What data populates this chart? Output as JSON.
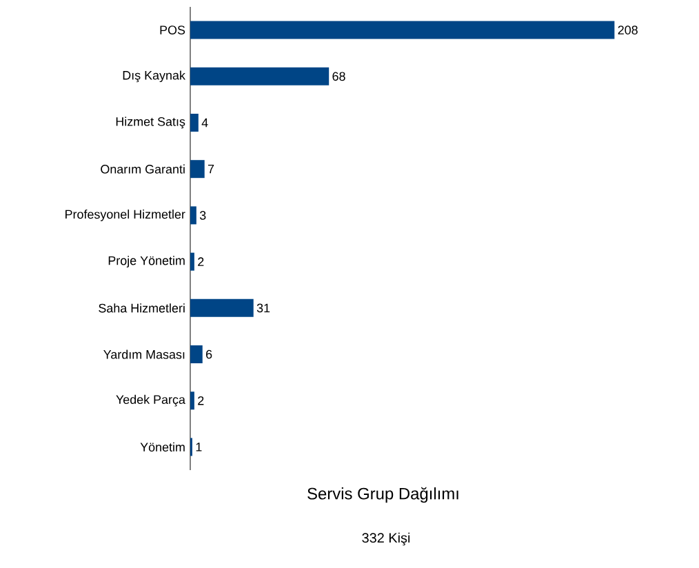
{
  "chart_data": {
    "type": "bar",
    "orientation": "horizontal",
    "title": "Servis Grup Dağılımı",
    "subtitle": "332 Kişi",
    "categories": [
      "POS",
      "Dış Kaynak",
      "Hizmet Satış",
      "Onarım Garanti",
      "Profesyonel Hizmetler",
      "Proje Yönetim",
      "Saha Hizmetleri",
      "Yardım Masası",
      "Yedek Parça",
      "Yönetim"
    ],
    "values": [
      208,
      68,
      4,
      7,
      3,
      2,
      31,
      6,
      2,
      1
    ],
    "color": "#004586",
    "data_labels": true
  }
}
